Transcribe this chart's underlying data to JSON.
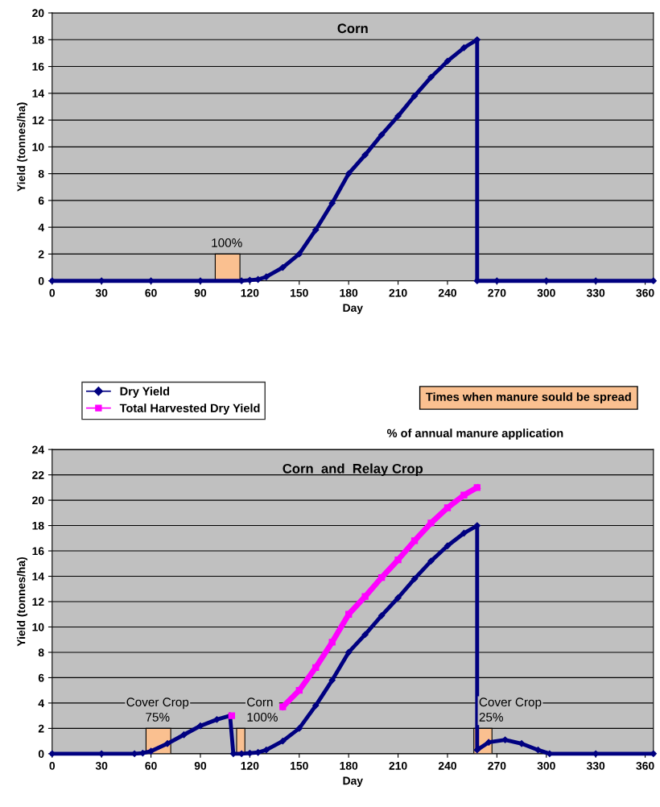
{
  "chart_data": [
    {
      "type": "line",
      "title": "Corn",
      "xlabel": "Day",
      "ylabel": "Yield (tonnes/ha)",
      "xlim": [
        0,
        365
      ],
      "xticks": [
        0,
        30,
        60,
        90,
        120,
        150,
        180,
        210,
        240,
        270,
        300,
        330,
        360
      ],
      "ylim": [
        0,
        20
      ],
      "yticks": [
        0,
        2,
        4,
        6,
        8,
        10,
        12,
        14,
        16,
        18,
        20
      ],
      "grid": "y",
      "legend": false,
      "series": [
        {
          "color": "#000080",
          "marker": "diamond",
          "x": [
            0,
            30,
            60,
            90,
            115,
            120,
            125,
            130,
            140,
            150,
            160,
            170,
            180,
            190,
            200,
            210,
            220,
            230,
            240,
            250,
            258,
            258,
            270,
            300,
            330,
            365
          ],
          "values": [
            0,
            0,
            0,
            0,
            0,
            0.05,
            0.1,
            0.3,
            1.0,
            2.0,
            3.8,
            5.8,
            8.0,
            9.4,
            10.9,
            12.3,
            13.8,
            15.2,
            16.4,
            17.4,
            18,
            0,
            0,
            0,
            0,
            0
          ]
        },
        {
          "type": "area",
          "color": "#fac090",
          "x": [
            99,
            99,
            114,
            114
          ],
          "values": [
            0,
            2,
            2,
            0
          ]
        }
      ],
      "annotations": [
        {
          "text": "100%",
          "x": 106,
          "y": 2
        }
      ]
    },
    {
      "type": "line",
      "title": "Corn  and  Relay Crop",
      "xlabel": "Day",
      "ylabel": "Yield (tonnes/ha)",
      "xlim": [
        0,
        365
      ],
      "xticks": [
        0,
        30,
        60,
        90,
        120,
        150,
        180,
        210,
        240,
        270,
        300,
        330,
        360
      ],
      "ylim": [
        0,
        24
      ],
      "yticks": [
        0,
        2,
        4,
        6,
        8,
        10,
        12,
        14,
        16,
        18,
        20,
        22,
        24
      ],
      "grid": "y",
      "legend": "top left",
      "series": [
        {
          "name": "Dry Yield",
          "color": "#000080",
          "marker": "diamond",
          "x": [
            0,
            30,
            50,
            55,
            60,
            70,
            80,
            90,
            100,
            108,
            110,
            115,
            120,
            125,
            130,
            140,
            150,
            160,
            170,
            180,
            190,
            200,
            210,
            220,
            230,
            240,
            250,
            258,
            258,
            265,
            275,
            285,
            295,
            302,
            330,
            365
          ],
          "values": [
            0,
            0,
            0,
            0.05,
            0.2,
            0.8,
            1.5,
            2.2,
            2.7,
            3.0,
            0,
            0,
            0.05,
            0.1,
            0.3,
            1.0,
            2.0,
            3.8,
            5.8,
            8.0,
            9.4,
            10.9,
            12.3,
            13.8,
            15.2,
            16.4,
            17.4,
            18,
            0.3,
            0.9,
            1.1,
            0.8,
            0.3,
            0,
            0,
            0
          ]
        },
        {
          "name": "Total Harvested Dry Yield",
          "color": "#ff00ff",
          "marker": "square",
          "x": [
            109,
            134,
            140,
            150,
            160,
            170,
            180,
            190,
            200,
            210,
            220,
            230,
            240,
            250,
            258
          ],
          "values": [
            3.0,
            null,
            3.7,
            5.0,
            6.8,
            8.8,
            11.0,
            12.4,
            13.9,
            15.3,
            16.8,
            18.2,
            19.4,
            20.4,
            21
          ]
        },
        {
          "type": "area",
          "name": "Times when manure sould be spread",
          "color": "#fac090",
          "x": [
            57,
            57,
            72,
            72,
            null,
            112,
            112,
            117,
            117,
            null,
            256,
            256,
            267,
            267
          ],
          "values": [
            0,
            2,
            2,
            0,
            null,
            0,
            2,
            2,
            0,
            null,
            0,
            2,
            2,
            0
          ]
        }
      ],
      "annotations": [
        "% of annual manure application",
        {
          "text": "Cover Crop\n75%",
          "x": 64,
          "y": 2
        },
        {
          "text": "Corn\n100%",
          "x": 116,
          "y": 2
        },
        {
          "text": "Cover Crop\n25%",
          "x": 257,
          "y": 2
        }
      ]
    }
  ]
}
